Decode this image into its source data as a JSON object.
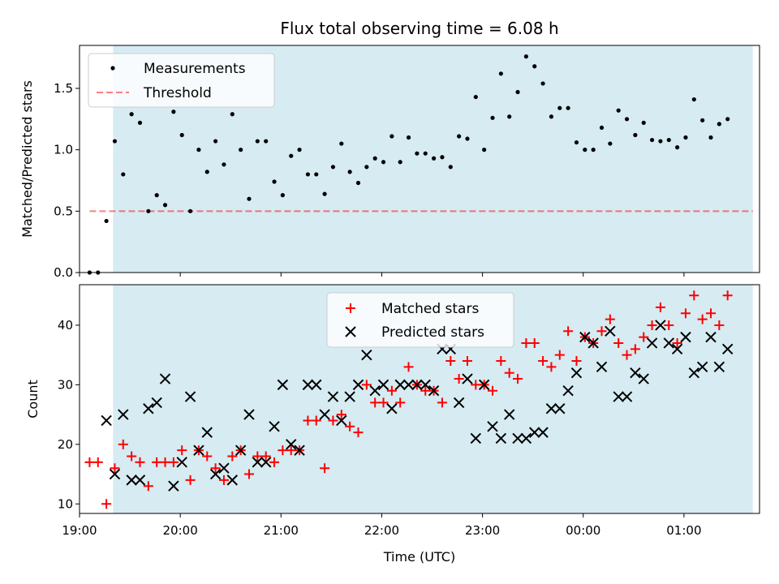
{
  "chart_data": [
    {
      "type": "scatter",
      "title": "Flux total observing time = 6.08 h",
      "xlabel": "",
      "ylabel": "Matched/Predicted stars",
      "ylim": [
        0,
        1.85
      ],
      "yticks": [
        "0.0",
        "0.5",
        "1.0",
        "1.5"
      ],
      "xlim": [
        "19:00",
        "01:45"
      ],
      "shaded_region": {
        "start": "19:20",
        "end": "01:41",
        "color": "#add8e6"
      },
      "legend": {
        "placement": "top-left",
        "entries": [
          "Measurements",
          "Threshold"
        ]
      },
      "threshold": {
        "name": "Threshold",
        "y": 0.5,
        "x_start": "19:06",
        "x_end": "01:41",
        "color": "#ff0000"
      },
      "series": [
        {
          "name": "Measurements",
          "color": "#000000",
          "x": [
            "19:06",
            "19:11",
            "19:16",
            "19:21",
            "19:26",
            "19:31",
            "19:36",
            "19:41",
            "19:46",
            "19:51",
            "19:56",
            "20:01",
            "20:06",
            "20:11",
            "20:16",
            "20:21",
            "20:26",
            "20:31",
            "20:36",
            "20:41",
            "20:46",
            "20:51",
            "20:56",
            "21:01",
            "21:06",
            "21:11",
            "21:16",
            "21:21",
            "21:26",
            "21:31",
            "21:36",
            "21:41",
            "21:46",
            "21:51",
            "21:56",
            "22:01",
            "22:06",
            "22:11",
            "22:16",
            "22:21",
            "22:26",
            "22:31",
            "22:36",
            "22:41",
            "22:46",
            "22:51",
            "22:56",
            "23:01",
            "23:06",
            "23:11",
            "23:16",
            "23:21",
            "23:26",
            "23:31",
            "23:36",
            "23:41",
            "23:46",
            "23:51",
            "23:56",
            "00:01",
            "00:06",
            "00:11",
            "00:16",
            "00:21",
            "00:26",
            "00:31",
            "00:36",
            "00:41",
            "00:46",
            "00:51",
            "00:56",
            "01:01",
            "01:06",
            "01:11",
            "01:16",
            "01:21",
            "01:26"
          ],
          "y": [
            0.0,
            0.0,
            0.42,
            1.07,
            0.8,
            1.29,
            1.22,
            0.5,
            0.63,
            0.55,
            1.31,
            1.12,
            0.5,
            1.0,
            0.82,
            1.07,
            0.88,
            1.29,
            1.0,
            0.6,
            1.07,
            1.07,
            0.74,
            0.63,
            0.95,
            1.0,
            0.8,
            0.8,
            0.64,
            0.86,
            1.05,
            0.82,
            0.73,
            0.86,
            0.93,
            0.9,
            1.11,
            0.9,
            1.1,
            0.97,
            0.97,
            0.93,
            0.94,
            0.86,
            1.11,
            1.09,
            1.43,
            1.0,
            1.26,
            1.62,
            1.27,
            1.47,
            1.76,
            1.68,
            1.54,
            1.27,
            1.34,
            1.34,
            1.06,
            1.0,
            1.0,
            1.18,
            1.05,
            1.32,
            1.25,
            1.12,
            1.22,
            1.08,
            1.07,
            1.08,
            1.02,
            1.1,
            1.41,
            1.24,
            1.1,
            1.21,
            1.25
          ]
        }
      ]
    },
    {
      "type": "scatter",
      "title": "",
      "xlabel": "Time (UTC)",
      "ylabel": "Count",
      "ylim": [
        8.4,
        46.8
      ],
      "yticks": [
        "10",
        "20",
        "30",
        "40"
      ],
      "xlim": [
        "19:00",
        "01:45"
      ],
      "xticks": [
        "19:00",
        "20:00",
        "21:00",
        "22:00",
        "23:00",
        "00:00",
        "01:00"
      ],
      "shaded_region": {
        "start": "19:20",
        "end": "01:41",
        "color": "#add8e6"
      },
      "legend": {
        "placement": "top-center",
        "entries": [
          "Matched stars",
          "Predicted stars"
        ]
      },
      "series": [
        {
          "name": "Matched stars",
          "marker": "+",
          "color": "#ff0000",
          "x": [
            "19:06",
            "19:11",
            "19:16",
            "19:21",
            "19:26",
            "19:31",
            "19:36",
            "19:41",
            "19:46",
            "19:51",
            "19:56",
            "20:01",
            "20:06",
            "20:11",
            "20:16",
            "20:21",
            "20:26",
            "20:31",
            "20:36",
            "20:41",
            "20:46",
            "20:51",
            "20:56",
            "21:01",
            "21:06",
            "21:11",
            "21:16",
            "21:21",
            "21:26",
            "21:31",
            "21:36",
            "21:41",
            "21:46",
            "21:51",
            "21:56",
            "22:01",
            "22:06",
            "22:11",
            "22:16",
            "22:21",
            "22:26",
            "22:31",
            "22:36",
            "22:41",
            "22:46",
            "22:51",
            "22:56",
            "23:01",
            "23:06",
            "23:11",
            "23:16",
            "23:21",
            "23:26",
            "23:31",
            "23:36",
            "23:41",
            "23:46",
            "23:51",
            "23:56",
            "00:01",
            "00:06",
            "00:11",
            "00:16",
            "00:21",
            "00:26",
            "00:31",
            "00:36",
            "00:41",
            "00:46",
            "00:51",
            "00:56",
            "01:01",
            "01:06",
            "01:11",
            "01:16",
            "01:21",
            "01:26"
          ],
          "y": [
            17,
            17,
            10,
            16,
            20,
            18,
            17,
            13,
            17,
            17,
            17,
            19,
            14,
            19,
            18,
            16,
            14,
            18,
            19,
            15,
            18,
            18,
            17,
            19,
            19,
            19,
            24,
            24,
            16,
            24,
            25,
            23,
            22,
            30,
            27,
            27,
            29,
            27,
            33,
            30,
            29,
            29,
            27,
            34,
            31,
            34,
            30,
            30,
            29,
            34,
            32,
            31,
            37,
            37,
            34,
            33,
            35,
            39,
            34,
            38,
            37,
            39,
            41,
            37,
            35,
            36,
            38,
            40,
            43,
            40,
            37,
            42,
            45,
            41,
            42,
            40,
            45
          ]
        },
        {
          "name": "Predicted stars",
          "marker": "x",
          "color": "#000000",
          "x": [
            "19:16",
            "19:21",
            "19:26",
            "19:31",
            "19:36",
            "19:41",
            "19:46",
            "19:51",
            "19:56",
            "20:01",
            "20:06",
            "20:11",
            "20:16",
            "20:21",
            "20:26",
            "20:31",
            "20:36",
            "20:41",
            "20:46",
            "20:51",
            "20:56",
            "21:01",
            "21:06",
            "21:11",
            "21:16",
            "21:21",
            "21:26",
            "21:31",
            "21:36",
            "21:41",
            "21:46",
            "21:51",
            "21:56",
            "22:01",
            "22:06",
            "22:11",
            "22:16",
            "22:21",
            "22:26",
            "22:31",
            "22:36",
            "22:41",
            "22:46",
            "22:51",
            "22:56",
            "23:01",
            "23:06",
            "23:11",
            "23:16",
            "23:21",
            "23:26",
            "23:31",
            "23:36",
            "23:41",
            "23:46",
            "23:51",
            "23:56",
            "00:01",
            "00:06",
            "00:11",
            "00:16",
            "00:21",
            "00:26",
            "00:31",
            "00:36",
            "00:41",
            "00:46",
            "00:51",
            "00:56",
            "01:01",
            "01:06",
            "01:11",
            "01:16",
            "01:21",
            "01:26"
          ],
          "y": [
            24,
            15,
            25,
            14,
            14,
            26,
            27,
            31,
            13,
            17,
            28,
            19,
            22,
            15,
            16,
            14,
            19,
            25,
            17,
            17,
            23,
            30,
            20,
            19,
            30,
            30,
            25,
            28,
            24,
            28,
            30,
            35,
            29,
            30,
            26,
            30,
            30,
            30,
            30,
            29,
            36,
            36,
            27,
            31,
            21,
            30,
            23,
            21,
            25,
            21,
            21,
            22,
            22,
            26,
            26,
            29,
            32,
            38,
            37,
            33,
            39,
            28,
            28,
            32,
            31,
            37,
            40,
            37,
            36,
            38,
            32,
            33,
            38,
            33,
            36
          ]
        }
      ]
    }
  ]
}
